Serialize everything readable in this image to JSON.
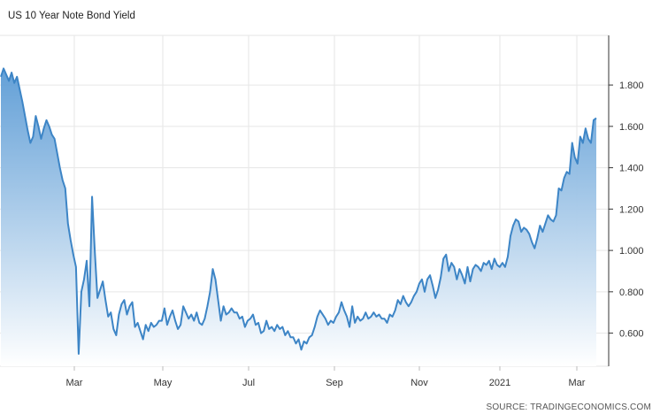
{
  "chart_data": {
    "type": "area",
    "title": "US 10 Year Note Bond Yield",
    "source": "SOURCE: TRADINGECONOMICS.COM",
    "xlabel": "",
    "ylabel": "",
    "x_ticks": [
      "Mar",
      "May",
      "Jul",
      "Sep",
      "Nov",
      "2021",
      "Mar"
    ],
    "y_ticks": [
      "0.600",
      "0.800",
      "1.000",
      "1.200",
      "1.400",
      "1.600",
      "1.800"
    ],
    "ylim": [
      0.44,
      2.04
    ],
    "grid": true,
    "legend": "none",
    "colors": {
      "line": "#3d85c6",
      "fill_top": "#5b9bd5",
      "fill_bottom": "#ffffff",
      "grid": "#e6e6e6"
    },
    "series": [
      {
        "values": [
          1.84,
          1.88,
          1.85,
          1.82,
          1.86,
          1.81,
          1.84,
          1.78,
          1.72,
          1.65,
          1.58,
          1.52,
          1.55,
          1.65,
          1.6,
          1.54,
          1.59,
          1.63,
          1.6,
          1.56,
          1.54,
          1.47,
          1.4,
          1.34,
          1.3,
          1.13,
          1.05,
          0.98,
          0.92,
          0.5,
          0.8,
          0.86,
          0.95,
          0.73,
          1.26,
          1.0,
          0.77,
          0.81,
          0.85,
          0.76,
          0.68,
          0.7,
          0.62,
          0.59,
          0.69,
          0.74,
          0.76,
          0.69,
          0.73,
          0.75,
          0.63,
          0.65,
          0.61,
          0.57,
          0.64,
          0.61,
          0.65,
          0.63,
          0.64,
          0.66,
          0.66,
          0.72,
          0.64,
          0.68,
          0.71,
          0.66,
          0.62,
          0.64,
          0.73,
          0.7,
          0.67,
          0.69,
          0.66,
          0.7,
          0.65,
          0.64,
          0.67,
          0.73,
          0.8,
          0.91,
          0.86,
          0.76,
          0.66,
          0.73,
          0.69,
          0.7,
          0.72,
          0.7,
          0.7,
          0.67,
          0.68,
          0.63,
          0.66,
          0.67,
          0.69,
          0.64,
          0.65,
          0.6,
          0.61,
          0.66,
          0.62,
          0.63,
          0.61,
          0.64,
          0.62,
          0.63,
          0.59,
          0.61,
          0.58,
          0.58,
          0.55,
          0.57,
          0.52,
          0.56,
          0.55,
          0.58,
          0.59,
          0.63,
          0.68,
          0.71,
          0.69,
          0.67,
          0.64,
          0.66,
          0.65,
          0.68,
          0.7,
          0.75,
          0.71,
          0.68,
          0.63,
          0.73,
          0.65,
          0.68,
          0.66,
          0.67,
          0.7,
          0.67,
          0.68,
          0.7,
          0.68,
          0.69,
          0.67,
          0.67,
          0.65,
          0.69,
          0.68,
          0.71,
          0.76,
          0.74,
          0.78,
          0.75,
          0.73,
          0.75,
          0.78,
          0.8,
          0.84,
          0.86,
          0.8,
          0.86,
          0.88,
          0.83,
          0.77,
          0.81,
          0.87,
          0.96,
          0.98,
          0.9,
          0.94,
          0.92,
          0.86,
          0.91,
          0.88,
          0.84,
          0.92,
          0.85,
          0.91,
          0.93,
          0.92,
          0.9,
          0.94,
          0.93,
          0.95,
          0.91,
          0.96,
          0.93,
          0.92,
          0.94,
          0.92,
          0.97,
          1.07,
          1.12,
          1.15,
          1.14,
          1.09,
          1.11,
          1.1,
          1.08,
          1.04,
          1.01,
          1.06,
          1.12,
          1.09,
          1.13,
          1.17,
          1.15,
          1.14,
          1.17,
          1.3,
          1.29,
          1.35,
          1.38,
          1.37,
          1.52,
          1.45,
          1.42,
          1.55,
          1.52,
          1.59,
          1.54,
          1.52,
          1.63,
          1.64
        ]
      }
    ]
  }
}
